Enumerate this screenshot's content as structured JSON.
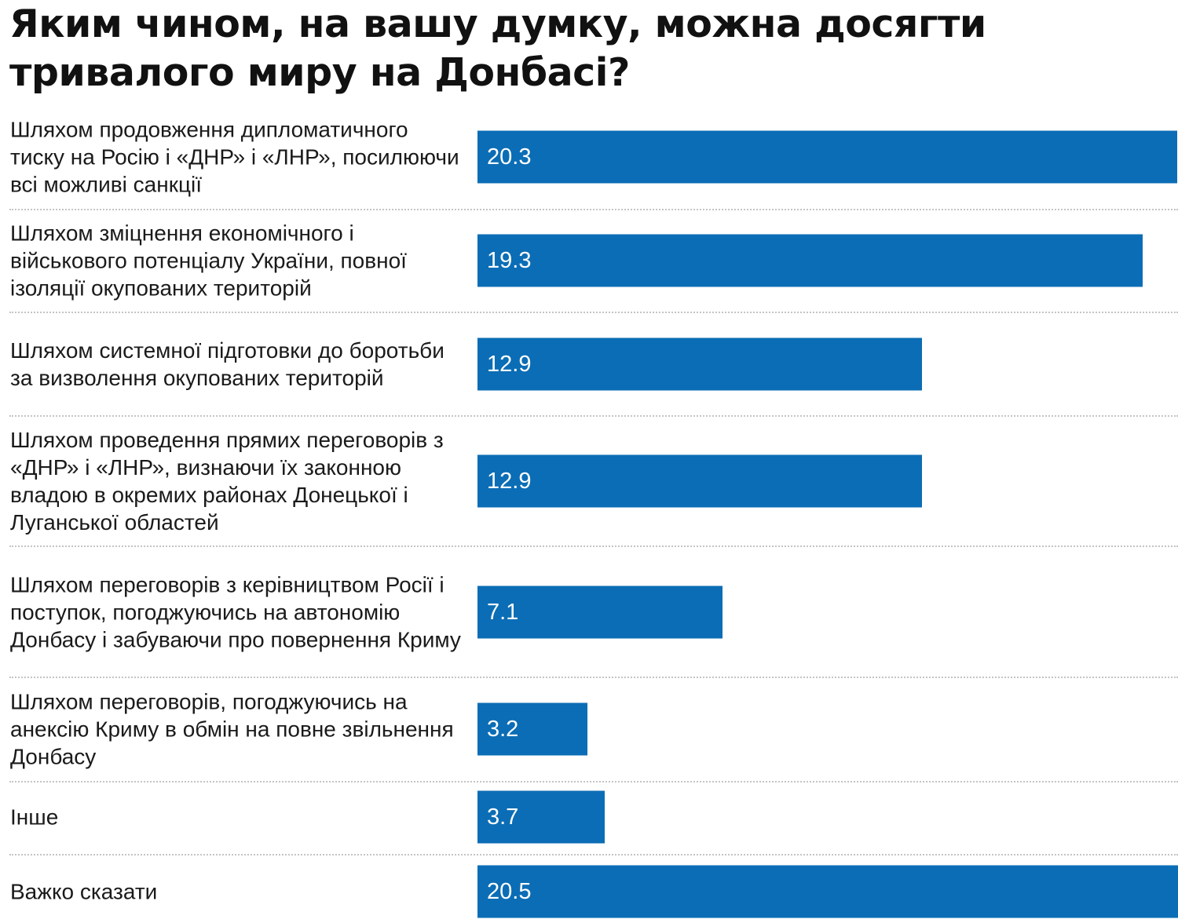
{
  "chart_data": {
    "type": "bar",
    "orientation": "horizontal",
    "title": "Яким чином, на вашу думку, можна досягти тривалого миру на Донбасі?",
    "categories": [
      "Шляхом продовження дипломатичного тиску на Росію і «ДНР» і «ЛНР», посилюючи всі можливі санкції",
      "Шляхом зміцнення економічного і військового потенціалу України, повної ізоляції окупованих територій",
      "Шляхом системної підготовки до боротьби за визволення окупованих територій",
      "Шляхом проведення прямих переговорів з «ДНР» і «ЛНР», визнаючи їх законною владою в окремих районах Донецької і Луганської областей",
      "Шляхом переговорів з керівництвом Росії і поступок, погоджуючись на автономію Донбасу і забуваючи про повернення Криму",
      "Шляхом переговорів, погоджуючись на анексію Криму в обмін на повне звільнення Донбасу",
      "Інше",
      "Важко сказати"
    ],
    "values": [
      20.3,
      19.3,
      12.9,
      12.9,
      7.1,
      3.2,
      3.7,
      20.5
    ],
    "value_labels": [
      "20.3",
      "19.3",
      "12.9",
      "12.9",
      "7.1",
      "3.2",
      "3.7",
      "20.5"
    ],
    "bar_color": "#0b6db5",
    "value_label_color": "#ffffff",
    "grid": false,
    "legend": "none",
    "xlim": [
      0,
      20.5
    ]
  }
}
